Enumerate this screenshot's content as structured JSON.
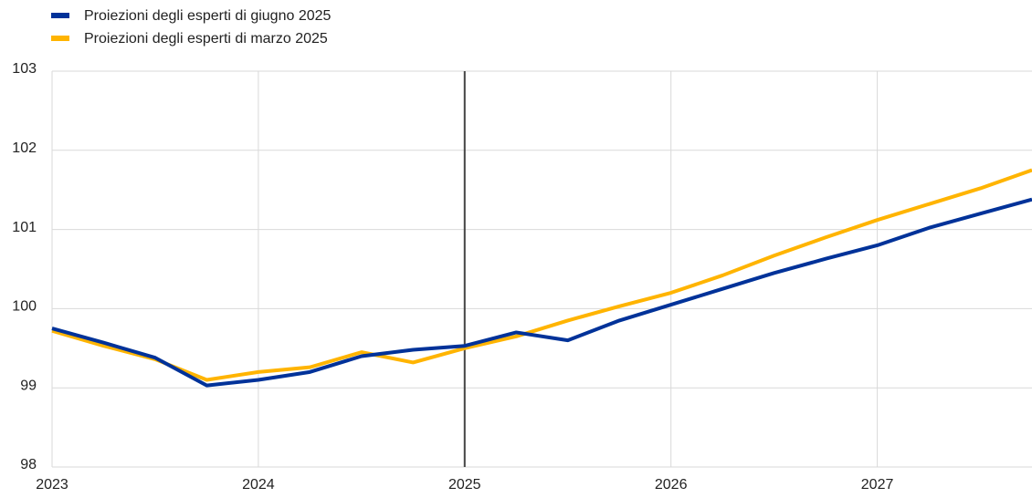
{
  "chart_data": {
    "type": "line",
    "x": [
      2023,
      2023.25,
      2023.5,
      2023.75,
      2024,
      2024.25,
      2024.5,
      2024.75,
      2025,
      2025.25,
      2025.5,
      2025.75,
      2026,
      2026.25,
      2026.5,
      2026.75,
      2027,
      2027.25,
      2027.5,
      2027.75
    ],
    "series": [
      {
        "name": "Proiezioni degli esperti di giugno 2025",
        "color": "#003299",
        "values": [
          99.75,
          99.57,
          99.38,
          99.03,
          99.1,
          99.2,
          99.4,
          99.48,
          99.53,
          99.7,
          99.6,
          99.85,
          100.05,
          100.25,
          100.45,
          100.63,
          100.8,
          101.02,
          101.2,
          101.38
        ]
      },
      {
        "name": "Proiezioni degli esperti di marzo 2025",
        "color": "#ffb400",
        "values": [
          99.72,
          99.53,
          99.36,
          99.1,
          99.2,
          99.26,
          99.45,
          99.32,
          99.5,
          99.65,
          99.85,
          100.03,
          100.2,
          100.42,
          100.67,
          100.9,
          101.12,
          101.32,
          101.52,
          101.75
        ]
      }
    ],
    "xlim": [
      2023,
      2027.75
    ],
    "xticks": [
      2023,
      2024,
      2025,
      2026,
      2027
    ],
    "ylim": [
      98,
      103
    ],
    "yticks": [
      98,
      99,
      100,
      101,
      102,
      103
    ],
    "grid": true,
    "vline": 2025,
    "legend": "top-left"
  }
}
